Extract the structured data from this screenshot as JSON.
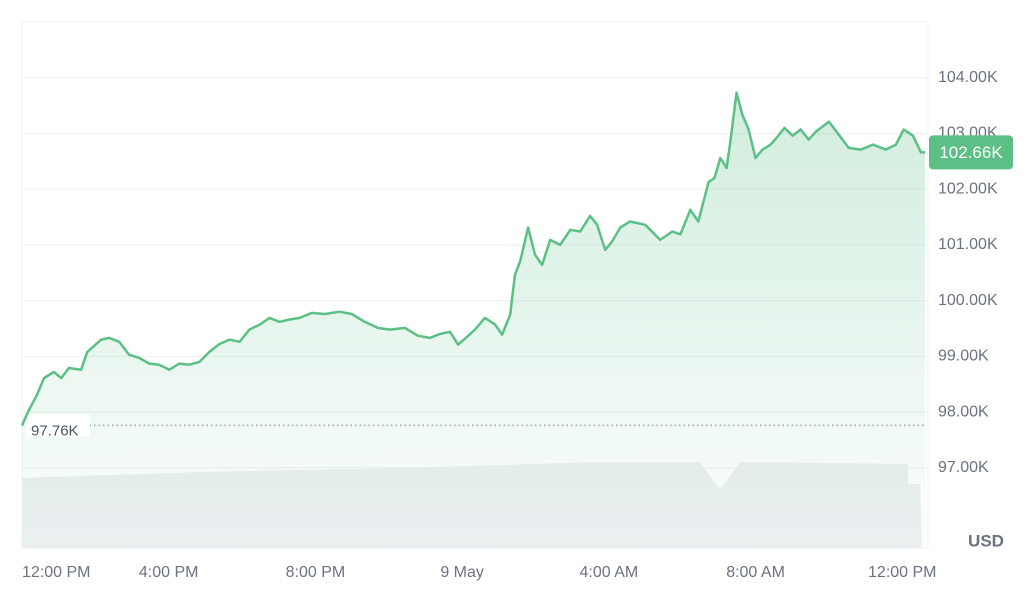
{
  "chart_data": {
    "type": "line",
    "color": "#5bbf86",
    "unit_label": "USD",
    "grid": true,
    "x": [
      0,
      0.19,
      0.41,
      0.6,
      0.87,
      1.07,
      1.28,
      1.61,
      1.78,
      1.97,
      2.16,
      2.38,
      2.65,
      2.92,
      3.2,
      3.47,
      3.74,
      4.02,
      4.29,
      4.56,
      4.84,
      5.11,
      5.38,
      5.66,
      5.93,
      6.2,
      6.48,
      6.75,
      7.02,
      7.3,
      7.57,
      7.9,
      8.25,
      8.66,
      8.99,
      9.34,
      9.7,
      10.03,
      10.44,
      10.79,
      11.12,
      11.39,
      11.67,
      11.89,
      12.1,
      12.35,
      12.62,
      12.9,
      13.09,
      13.31,
      13.44,
      13.58,
      13.8,
      13.99,
      14.18,
      14.4,
      14.67,
      14.95,
      15.22,
      15.49,
      15.68,
      15.9,
      16.09,
      16.31,
      16.58,
      16.99,
      17.4,
      17.73,
      17.95,
      18.22,
      18.44,
      18.72,
      18.88,
      19.04,
      19.21,
      19.32,
      19.48,
      19.64,
      19.81,
      20,
      20.19,
      20.41,
      20.57,
      20.79,
      21.01,
      21.23,
      21.45,
      21.64,
      22,
      22.21,
      22.54,
      22.87,
      23.2,
      23.55,
      23.83,
      24.04,
      24.29,
      24.51,
      24.62
    ],
    "values": [
      97760,
      98040,
      98310,
      98610,
      98720,
      98610,
      98790,
      98760,
      99080,
      99190,
      99300,
      99330,
      99260,
      99030,
      98970,
      98870,
      98850,
      98760,
      98870,
      98850,
      98900,
      99080,
      99220,
      99300,
      99260,
      99480,
      99570,
      99690,
      99620,
      99660,
      99690,
      99780,
      99760,
      99800,
      99760,
      99620,
      99510,
      99480,
      99510,
      99370,
      99330,
      99400,
      99440,
      99210,
      99330,
      99480,
      99690,
      99570,
      99390,
      99750,
      100460,
      100700,
      101310,
      100820,
      100640,
      101090,
      101000,
      101270,
      101240,
      101520,
      101360,
      100910,
      101060,
      101310,
      101420,
      101360,
      101090,
      101240,
      101190,
      101630,
      101420,
      102130,
      102200,
      102560,
      102380,
      102890,
      103730,
      103340,
      103070,
      102560,
      102710,
      102800,
      102920,
      103100,
      102960,
      103070,
      102890,
      103030,
      103210,
      103030,
      102740,
      102710,
      102800,
      102710,
      102800,
      103070,
      102960,
      102660,
      102660
    ],
    "xlim": [
      0,
      24.62
    ],
    "xticks": [
      {
        "value": 0,
        "label": "12:00 PM"
      },
      {
        "value": 4,
        "label": "4:00 PM"
      },
      {
        "value": 8,
        "label": "8:00 PM"
      },
      {
        "value": 12,
        "label": "9 May"
      },
      {
        "value": 16,
        "label": "4:00 AM"
      },
      {
        "value": 20,
        "label": "8:00 AM"
      },
      {
        "value": 24,
        "label": "12:00 PM"
      }
    ],
    "ylim": [
      95560,
      105000
    ],
    "yticks": [
      {
        "value": 97000,
        "label": "97.00K"
      },
      {
        "value": 98000,
        "label": "98.00K"
      },
      {
        "value": 99000,
        "label": "99.00K"
      },
      {
        "value": 100000,
        "label": "100.00K"
      },
      {
        "value": 101000,
        "label": "101.00K"
      },
      {
        "value": 102000,
        "label": "102.00K"
      },
      {
        "value": 103000,
        "label": "103.00K"
      },
      {
        "value": 104000,
        "label": "104.00K"
      }
    ],
    "reference_line": {
      "value": 97760,
      "label": "97.76K"
    },
    "current_price": {
      "value": 102660,
      "label": "102.66K"
    }
  }
}
